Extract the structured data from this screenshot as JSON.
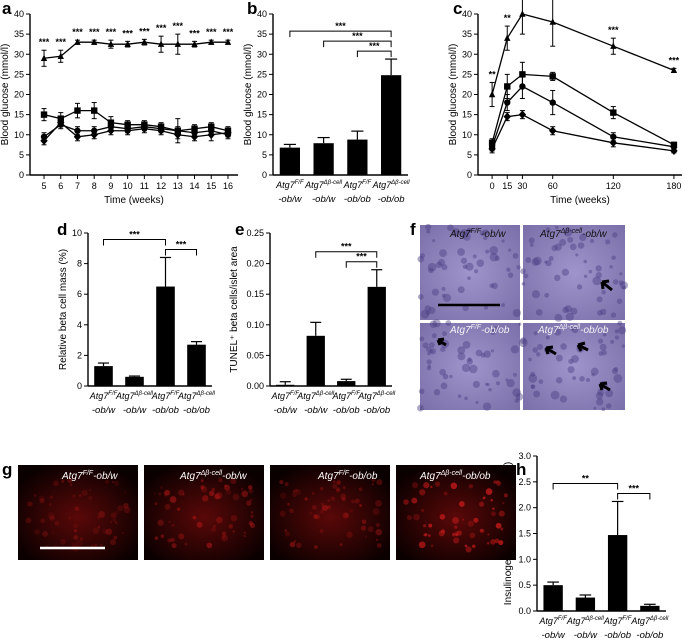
{
  "panel_labels": {
    "a": "a",
    "b": "b",
    "c": "c",
    "d": "d",
    "e": "e",
    "f": "f",
    "g": "g",
    "h": "h"
  },
  "micrograph_labels": {
    "f": [
      {
        "pre": "Atg7",
        "sup": "F/F",
        "post": "-ob/w",
        "color": "#111"
      },
      {
        "pre": "Atg7",
        "sup": "Δβ-cell",
        "post": "-ob/w",
        "color": "#111"
      },
      {
        "pre": "Atg7",
        "sup": "F/F",
        "post": "-ob/ob",
        "color": "#f4f4f4"
      },
      {
        "pre": "Atg7",
        "sup": "Δβ-cell",
        "post": "-ob/ob",
        "color": "#f4f4f4"
      }
    ],
    "g": [
      {
        "pre": "Atg7",
        "sup": "F/F",
        "post": "-ob/w",
        "color": "#ffffff"
      },
      {
        "pre": "Atg7",
        "sup": "Δβ-cell",
        "post": "-ob/w",
        "color": "#ffffff"
      },
      {
        "pre": "Atg7",
        "sup": "F/F",
        "post": "-ob/ob",
        "color": "#ffffff"
      },
      {
        "pre": "Atg7",
        "sup": "Δβ-cell",
        "post": "-ob/ob",
        "color": "#ffffff"
      }
    ]
  },
  "colors": {
    "bar": "#000000",
    "axis": "#000000",
    "f_bg": "#8a7fb8",
    "g_bg": "#0b0000",
    "g_signal": "#c41a1a"
  },
  "chart_data": [
    {
      "id": "a",
      "type": "line",
      "xlabel": "Time (weeks)",
      "ylabel": "Blood glucose (mmol/l)",
      "x": [
        5,
        6,
        7,
        8,
        9,
        10,
        11,
        12,
        13,
        14,
        15,
        16
      ],
      "xlim": [
        4.4,
        16.6
      ],
      "ylim": [
        0,
        40
      ],
      "yticks": [
        0,
        5,
        10,
        15,
        20,
        25,
        30,
        35,
        40
      ],
      "series": [
        {
          "values": [
            29,
            29.5,
            33,
            33,
            32.5,
            32.5,
            33,
            32.5,
            32.5,
            32.5,
            33,
            33
          ],
          "err": [
            2,
            1.5,
            0.5,
            0.5,
            1,
            0.7,
            0.7,
            2,
            2.5,
            0.7,
            0.5,
            0.5
          ],
          "marker": "triangle"
        },
        {
          "values": [
            15,
            14,
            16,
            16,
            13,
            12.5,
            12.5,
            12,
            11,
            11.5,
            12,
            11
          ],
          "err": [
            1.5,
            1.5,
            1.8,
            2,
            1.5,
            1,
            1,
            1,
            3,
            1,
            1,
            1
          ],
          "marker": "square"
        },
        {
          "values": [
            9.5,
            12.5,
            11,
            11,
            12,
            11.5,
            12,
            11.5,
            11,
            10.5,
            11,
            10
          ],
          "err": [
            1,
            1,
            1,
            1,
            1,
            1,
            1,
            1,
            1,
            1,
            1,
            1
          ],
          "marker": "circle"
        },
        {
          "values": [
            8.5,
            13,
            9.5,
            10,
            11,
            11,
            11.5,
            11,
            10,
            9.5,
            10,
            10.5
          ],
          "err": [
            1,
            1,
            1,
            1,
            1,
            1,
            1,
            1,
            1,
            1,
            1.5,
            1
          ],
          "marker": "diamond"
        }
      ],
      "annotations": [
        "***",
        "***",
        "***",
        "***",
        "***",
        "***",
        "***",
        "***",
        "***",
        "***",
        "***",
        "***"
      ]
    },
    {
      "id": "b",
      "type": "bar",
      "ylabel": "Blood glucose (mmol/l)",
      "ylim": [
        0,
        40
      ],
      "yticks": [
        0,
        5,
        10,
        15,
        20,
        25,
        30,
        35,
        40
      ],
      "categories": [
        {
          "pre": "Atg7",
          "sup": "F/F",
          "post": "-ob/w"
        },
        {
          "pre": "Atg7",
          "sup": "Δβ-cell",
          "post": "-ob/w"
        },
        {
          "pre": "Atg7",
          "sup": "F/F",
          "post": "-ob/ob"
        },
        {
          "pre": "Atg7",
          "sup": "Δβ-cell",
          "post": "-ob/ob"
        }
      ],
      "values": [
        6.8,
        7.9,
        8.8,
        24.8
      ],
      "err": [
        0.8,
        1.4,
        2.1,
        4
      ],
      "brackets": [
        {
          "from": 0,
          "to": 3,
          "label": "***"
        },
        {
          "from": 1,
          "to": 3,
          "label": "***"
        },
        {
          "from": 2,
          "to": 3,
          "label": "***"
        }
      ]
    },
    {
      "id": "c",
      "type": "line",
      "xlabel": "Time (weeks)",
      "ylabel": "Blood glucose (mmol/l)",
      "x": [
        0,
        15,
        30,
        60,
        120,
        180
      ],
      "xticks": [
        0,
        15,
        30,
        60,
        120,
        180
      ],
      "xlim": [
        -10,
        188
      ],
      "ylim": [
        0,
        40
      ],
      "yticks": [
        0,
        5,
        10,
        15,
        20,
        25,
        30,
        35,
        40
      ],
      "series": [
        {
          "values": [
            20,
            34,
            40,
            38,
            32,
            26
          ],
          "err": [
            3,
            3,
            5,
            6,
            2,
            0.5
          ],
          "marker": "triangle"
        },
        {
          "values": [
            8,
            22,
            25,
            24.5,
            15.5,
            7.5
          ],
          "err": [
            1,
            3,
            3,
            1,
            1.5,
            0.5
          ],
          "marker": "square"
        },
        {
          "values": [
            7,
            18,
            22,
            18,
            9.5,
            7
          ],
          "err": [
            1,
            2,
            3,
            3,
            1,
            0.5
          ],
          "marker": "circle"
        },
        {
          "values": [
            6.5,
            14.5,
            15,
            11,
            8,
            6
          ],
          "err": [
            1,
            1,
            1,
            1,
            1,
            0.5
          ],
          "marker": "diamond"
        }
      ],
      "annotations": [
        {
          "x": 0,
          "label": "**"
        },
        {
          "x": 15,
          "label": "**"
        },
        {
          "x": 30,
          "label": "*"
        },
        {
          "x": 60,
          "label": "*"
        },
        {
          "x": 120,
          "label": "***"
        },
        {
          "x": 180,
          "label": "***"
        }
      ]
    },
    {
      "id": "d",
      "type": "bar",
      "ylabel": "Relative beta cell mass (%)",
      "ylim": [
        0,
        10
      ],
      "yticks": [
        0,
        2,
        4,
        6,
        8,
        10
      ],
      "categories": [
        {
          "pre": "Atg7",
          "sup": "F/F",
          "post": "-ob/w"
        },
        {
          "pre": "Atg7",
          "sup": "Δβ-cell",
          "post": "-ob/w"
        },
        {
          "pre": "Atg7",
          "sup": "F/F",
          "post": "-ob/ob"
        },
        {
          "pre": "Atg7",
          "sup": "Δβ-cell",
          "post": "-ob/ob"
        }
      ],
      "values": [
        1.3,
        0.6,
        6.5,
        2.7
      ],
      "err": [
        0.2,
        0.05,
        1.9,
        0.2
      ],
      "brackets": [
        {
          "from": 0,
          "to": 2,
          "label": "***"
        },
        {
          "from": 2,
          "to": 3,
          "label": "***"
        }
      ]
    },
    {
      "id": "e",
      "type": "bar",
      "ylabel": "TUNEL⁺ beta cells/islet area",
      "ylim": [
        0,
        0.25
      ],
      "yticks": [
        0,
        0.05,
        0.1,
        0.15,
        0.2,
        0.25
      ],
      "categories": [
        {
          "pre": "Atg7",
          "sup": "F/F",
          "post": "-ob/w"
        },
        {
          "pre": "Atg7",
          "sup": "Δβ-cell",
          "post": "-ob/w"
        },
        {
          "pre": "Atg7",
          "sup": "F/F",
          "post": "-ob/ob"
        },
        {
          "pre": "Atg7",
          "sup": "Δβ-cell",
          "post": "-ob/ob"
        }
      ],
      "values": [
        0.002,
        0.082,
        0.008,
        0.162
      ],
      "err": [
        0.005,
        0.022,
        0.003,
        0.028
      ],
      "brackets": [
        {
          "from": 1,
          "to": 3,
          "label": "***"
        },
        {
          "from": 2,
          "to": 3,
          "label": "***"
        }
      ]
    },
    {
      "id": "h",
      "type": "bar",
      "ylabel": "Insulinogenic index (pmol/mmol)",
      "ylim": [
        0,
        3.0
      ],
      "yticks": [
        0,
        0.5,
        1.0,
        1.5,
        2.0,
        2.5,
        3.0
      ],
      "categories": [
        {
          "pre": "Atg7",
          "sup": "F/F",
          "post": "-ob/w"
        },
        {
          "pre": "Atg7",
          "sup": "Δβ-cell",
          "post": "-ob/w"
        },
        {
          "pre": "Atg7",
          "sup": "F/F",
          "post": "-ob/ob"
        },
        {
          "pre": "Atg7",
          "sup": "Δβ-cell",
          "post": "-ob/ob"
        }
      ],
      "values": [
        0.5,
        0.26,
        1.47,
        0.1
      ],
      "err": [
        0.06,
        0.05,
        0.65,
        0.03
      ],
      "brackets": [
        {
          "from": 0,
          "to": 2,
          "label": "**"
        },
        {
          "from": 2,
          "to": 3,
          "label": "***"
        }
      ]
    }
  ]
}
